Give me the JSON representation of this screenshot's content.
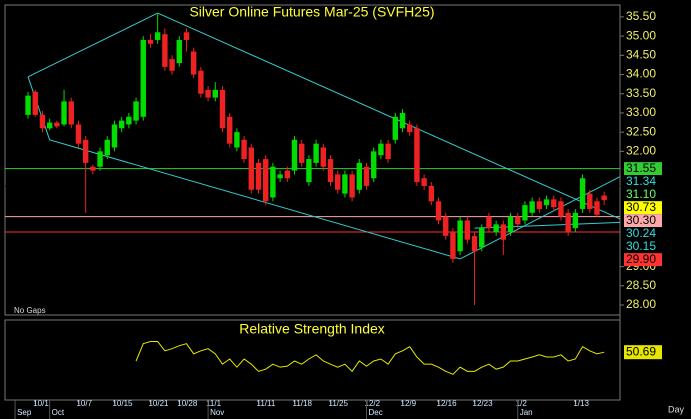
{
  "chart_data": [
    {
      "type": "candlestick",
      "title": "Silver Online Futures Mar-25 (SVFH25)",
      "note": "No Gaps",
      "period": "Day",
      "up_color": "#00dd00",
      "down_color": "#ee2222",
      "open": [
        32.95,
        33.55,
        32.95,
        32.6,
        32.75,
        32.7,
        33.3,
        32.7,
        32.3,
        31.6,
        31.6,
        31.9,
        32.1,
        32.6,
        32.7,
        32.8,
        32.9,
        34.9,
        34.9,
        35.05,
        34.4,
        34.3,
        35.1,
        34.6,
        34.1,
        33.6,
        33.4,
        33.6,
        32.9,
        32.1,
        32.3,
        32.1,
        31.7,
        31.8,
        30.8,
        31.3,
        31.5,
        31.5,
        32.2,
        31.2,
        31.7,
        32.1,
        31.8,
        31.4,
        30.9,
        31.4,
        31.0,
        31.6,
        31.3,
        31.9,
        32.2,
        32.3,
        32.6,
        32.7,
        32.6,
        31.3,
        31.1,
        30.7,
        30.3,
        29.9,
        29.4,
        30.2,
        29.8,
        29.5,
        30.3,
        29.9,
        30.1,
        29.9,
        30.3,
        30.2,
        30.4,
        30.7,
        30.6,
        30.75,
        30.7,
        30.4,
        30.0,
        30.5,
        30.9,
        30.7,
        30.85
      ],
      "high": [
        33.55,
        33.6,
        33.05,
        32.85,
        32.8,
        33.6,
        33.4,
        32.8,
        32.4,
        31.65,
        32.1,
        32.4,
        32.8,
        32.9,
        33.0,
        33.4,
        35.0,
        35.05,
        35.6,
        35.2,
        34.5,
        35.0,
        35.2,
        34.7,
        34.2,
        33.7,
        33.8,
        33.7,
        33.0,
        32.6,
        32.4,
        32.2,
        31.8,
        31.9,
        31.7,
        31.5,
        31.6,
        32.4,
        32.3,
        31.9,
        32.3,
        32.2,
        31.9,
        31.5,
        31.5,
        31.5,
        31.8,
        31.7,
        32.1,
        32.3,
        32.3,
        33.0,
        33.1,
        32.8,
        32.7,
        31.4,
        31.2,
        30.8,
        30.4,
        30.0,
        30.3,
        30.3,
        29.9,
        30.1,
        30.4,
        30.2,
        30.2,
        30.4,
        30.4,
        30.7,
        30.8,
        30.8,
        30.85,
        30.85,
        30.8,
        30.5,
        30.5,
        31.4,
        31.0,
        30.8,
        30.95
      ],
      "low": [
        32.85,
        32.9,
        32.5,
        32.55,
        32.6,
        32.65,
        32.6,
        32.1,
        30.4,
        31.4,
        31.5,
        31.8,
        32.0,
        32.5,
        32.6,
        32.7,
        32.8,
        34.7,
        34.8,
        34.1,
        34.0,
        34.2,
        34.6,
        33.9,
        33.4,
        33.3,
        33.3,
        32.5,
        32.1,
        32.0,
        31.7,
        30.9,
        30.9,
        30.6,
        30.7,
        31.2,
        31.2,
        31.4,
        31.6,
        31.1,
        31.6,
        31.5,
        31.1,
        30.9,
        30.8,
        30.7,
        30.9,
        31.0,
        31.2,
        31.8,
        31.7,
        32.2,
        32.5,
        32.4,
        31.1,
        31.0,
        30.6,
        30.1,
        29.7,
        29.1,
        29.3,
        29.6,
        28.0,
        29.4,
        29.9,
        29.8,
        29.3,
        29.8,
        30.0,
        30.1,
        30.3,
        30.4,
        30.5,
        30.45,
        30.2,
        29.8,
        29.9,
        30.4,
        30.4,
        30.3,
        30.6
      ],
      "close": [
        33.45,
        32.95,
        32.6,
        32.75,
        32.65,
        33.3,
        32.7,
        32.2,
        31.7,
        31.5,
        32.0,
        32.3,
        32.7,
        32.8,
        32.9,
        33.3,
        34.9,
        34.8,
        35.1,
        34.2,
        34.1,
        34.9,
        34.9,
        34.0,
        33.5,
        33.4,
        33.6,
        32.6,
        32.2,
        32.5,
        31.8,
        31.0,
        31.0,
        30.7,
        31.6,
        31.4,
        31.3,
        32.3,
        31.7,
        31.8,
        32.2,
        31.6,
        31.2,
        31.0,
        31.4,
        30.8,
        31.7,
        31.1,
        32.0,
        32.2,
        31.8,
        32.9,
        33.0,
        32.5,
        31.2,
        31.1,
        30.7,
        30.2,
        29.8,
        29.2,
        30.2,
        29.7,
        29.4,
        30.0,
        30.0,
        30.1,
        29.7,
        30.3,
        30.1,
        30.6,
        30.7,
        30.5,
        30.75,
        30.55,
        30.3,
        29.9,
        30.4,
        31.3,
        30.5,
        30.35,
        30.73
      ],
      "xlim": [
        -3.2,
        82.2
      ],
      "xticks": [
        {
          "value": 1,
          "label": "10/1"
        },
        {
          "value": 7,
          "label": "10/7"
        },
        {
          "value": 12,
          "label": "10/15"
        },
        {
          "value": 17,
          "label": "10/21"
        },
        {
          "value": 21,
          "label": "10/28"
        },
        {
          "value": 25,
          "label": "11/1"
        },
        {
          "value": 32,
          "label": "11/11"
        },
        {
          "value": 37,
          "label": "11/18"
        },
        {
          "value": 42,
          "label": "11/25"
        },
        {
          "value": 47,
          "label": "12/2"
        },
        {
          "value": 52,
          "label": "12/9"
        },
        {
          "value": 57,
          "label": "12/16"
        },
        {
          "value": 62,
          "label": "12/23"
        },
        {
          "value": 68,
          "label": "1/2"
        },
        {
          "value": 76,
          "label": "1/13"
        }
      ],
      "months": [
        {
          "value": -1.8,
          "label": "Sep"
        },
        {
          "value": 3,
          "label": "Oct"
        },
        {
          "value": 25,
          "label": "Nov"
        },
        {
          "value": 47,
          "label": "Dec"
        },
        {
          "value": 68,
          "label": "Jan"
        }
      ],
      "ylim": [
        27.74,
        35.81
      ],
      "yticks": [
        {
          "value": 35.5,
          "label": "35.50"
        },
        {
          "value": 35,
          "label": "35.00"
        },
        {
          "value": 34.5,
          "label": "34.50"
        },
        {
          "value": 34,
          "label": "34.00"
        },
        {
          "value": 33.5,
          "label": "33.50"
        },
        {
          "value": 33,
          "label": "33.00"
        },
        {
          "value": 32.5,
          "label": "32.50"
        },
        {
          "value": 32,
          "label": "32.00"
        },
        {
          "value": 29,
          "label": "29.00"
        },
        {
          "value": 28.5,
          "label": "28.50"
        },
        {
          "value": 28,
          "label": "28.00"
        }
      ],
      "levels": [
        {
          "value": 31.55,
          "label": "31.55",
          "bg": "#33cc33",
          "fg": "#000000",
          "line": true
        },
        {
          "value": 31.34,
          "label": "31.34",
          "bg": "#000000",
          "fg": "#33dddd",
          "line": false
        },
        {
          "value": 31.1,
          "label": "31.10",
          "bg": "#000000",
          "fg": "#66ff66",
          "line": true
        },
        {
          "value": 30.73,
          "label": "30.73",
          "bg": "#ffff00",
          "fg": "#000000",
          "line": false
        },
        {
          "value": 30.3,
          "label": "30.30",
          "bg": "#ffaaaa",
          "fg": "#000000",
          "line": true
        },
        {
          "value": 30.24,
          "label": "30.24",
          "bg": "#000000",
          "fg": "#33dddd",
          "line": false
        },
        {
          "value": 30.15,
          "label": "30.15",
          "bg": "#000000",
          "fg": "#33dddd",
          "line": false
        },
        {
          "value": 29.9,
          "label": "29.90",
          "bg": "#ff3333",
          "fg": "#000000",
          "line": true
        }
      ],
      "trendline_color": "#33cccc",
      "trendlines": [
        {
          "x": [
            0,
            18
          ],
          "y": [
            33.94,
            35.6
          ]
        },
        {
          "x": [
            18,
            82.2
          ],
          "y": [
            35.6,
            30.24
          ]
        },
        {
          "x": [
            0,
            3,
            60
          ],
          "y": [
            33.94,
            32.3,
            29.2
          ]
        },
        {
          "x": [
            60,
            82.2
          ],
          "y": [
            29.2,
            31.34
          ]
        },
        {
          "x": [
            62,
            82.2
          ],
          "y": [
            30.0,
            30.15
          ]
        }
      ]
    },
    {
      "type": "line",
      "title": "Relative Strength Index",
      "color": "#e6e600",
      "ylim": [
        22,
        70
      ],
      "values": [
        null,
        null,
        null,
        null,
        null,
        null,
        null,
        null,
        null,
        null,
        null,
        null,
        null,
        null,
        null,
        45.4,
        55.8,
        57.1,
        57.1,
        51.5,
        52.8,
        54.6,
        55.8,
        49.7,
        51.5,
        52.8,
        49.7,
        43.5,
        46.6,
        41.7,
        46.6,
        43.5,
        39.2,
        40.5,
        43.5,
        41.7,
        42.3,
        45.4,
        43.5,
        46.6,
        49.1,
        45.4,
        43.5,
        41.7,
        43.5,
        39.2,
        45.4,
        42.3,
        45.4,
        46.6,
        43.5,
        49.7,
        51.5,
        54.0,
        47.8,
        43.5,
        43.5,
        41.7,
        39.2,
        37.4,
        41.7,
        39.2,
        39.2,
        41.7,
        43.5,
        40.5,
        41.7,
        45.4,
        45.4,
        46.6,
        47.8,
        49.1,
        47.8,
        47.8,
        49.1,
        45.4,
        46.6,
        54.0,
        51.5,
        49.7,
        50.69
      ]
    }
  ]
}
